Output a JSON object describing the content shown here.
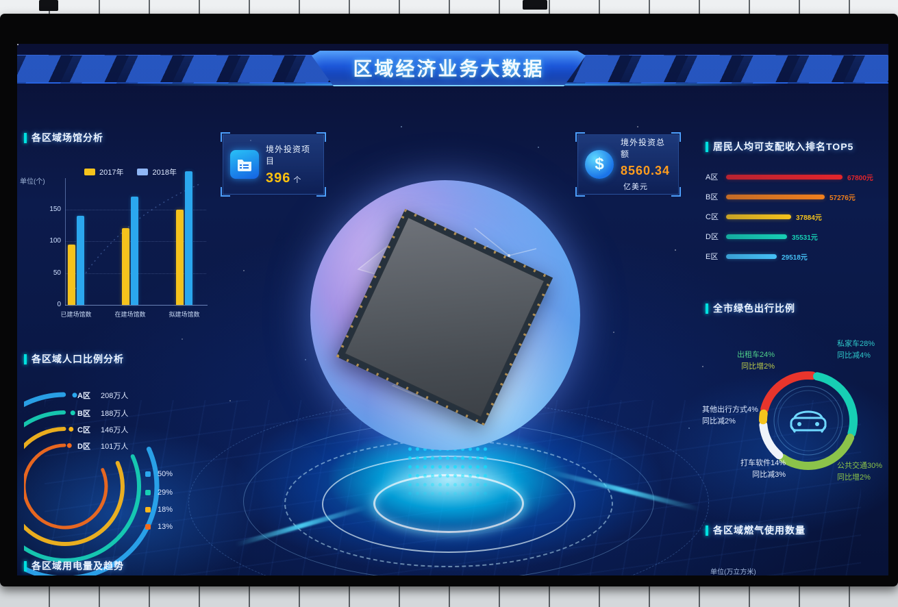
{
  "header": {
    "title": "区域经济业务大数据"
  },
  "stat_cards": [
    {
      "icon": "folder-icon",
      "label": "境外投资项目",
      "value": "396",
      "unit": "个",
      "value_color": "#ffc20e"
    },
    {
      "icon": "dollar-icon",
      "label": "境外投资总额",
      "value": "8560.34",
      "unit": "亿美元",
      "value_color": "#ff9d1e"
    }
  ],
  "chart_data": [
    {
      "id": "venues",
      "type": "bar",
      "title": "各区域场馆分析",
      "unit_label": "单位(个)",
      "categories": [
        "已建场馆数",
        "在建场馆数",
        "拟建场馆数"
      ],
      "series": [
        {
          "name": "2017年",
          "color": "#f6c31c",
          "values": [
            95,
            120,
            150
          ]
        },
        {
          "name": "2018年",
          "color": "#2ba7ee",
          "values": [
            140,
            170,
            210
          ]
        }
      ],
      "yticks": [
        0,
        50,
        100,
        150
      ],
      "ylim": [
        0,
        235
      ],
      "grid": "dotted"
    },
    {
      "id": "population",
      "type": "arc-rings",
      "title": "各区域人口比例分析",
      "items": [
        {
          "label": "A区",
          "value": "208万人",
          "pct": "50%",
          "color": "#2ba7ee"
        },
        {
          "label": "B区",
          "value": "188万人",
          "pct": "29%",
          "color": "#17cfb4"
        },
        {
          "label": "C区",
          "value": "146万人",
          "pct": "18%",
          "color": "#f6b51c"
        },
        {
          "label": "D区",
          "value": "101万人",
          "pct": "13%",
          "color": "#f26a1d"
        }
      ]
    },
    {
      "id": "income",
      "type": "hbar",
      "title": "居民人均可支配收入排名TOP5",
      "categories": [
        "A区",
        "B区",
        "C区",
        "D区",
        "E区"
      ],
      "values": [
        67800,
        57276,
        37884,
        35531,
        29518
      ],
      "value_labels": [
        "67800元",
        "57276元",
        "37884元",
        "35531元",
        "29518元"
      ],
      "colors": [
        "#e3252b",
        "#f07f1d",
        "#f6c31c",
        "#17cfb4",
        "#45c0f5"
      ],
      "xlim": [
        0,
        70000
      ]
    },
    {
      "id": "green_travel",
      "type": "pie",
      "title": "全市绿色出行比例",
      "segments": [
        {
          "label": "出租车24%",
          "sub": "同比增2%",
          "pct": 24,
          "color": "#e8352c",
          "label_color": "#4fd08a",
          "sub_color": "#b9c94a"
        },
        {
          "label": "私家车28%",
          "sub": "同比减4%",
          "pct": 28,
          "color": "#17cfb4",
          "label_color": "#2ec7c9",
          "sub_color": "#2ec7c9"
        },
        {
          "label": "公共交通30%",
          "sub": "同比增2%",
          "pct": 30,
          "color": "#8bc34a",
          "label_color": "#8bc34a",
          "sub_color": "#8bc34a"
        },
        {
          "label": "打车软件14%",
          "sub": "同比减3%",
          "pct": 14,
          "color": "#eef3fa",
          "label_color": "#e6eefc",
          "sub_color": "#e6eefc"
        },
        {
          "label": "其他出行方式4%",
          "sub": "同比减2%",
          "pct": 4,
          "color": "#f6c31c",
          "label_color": "#dce9ff",
          "sub_color": "#dce9ff"
        }
      ],
      "center_icon": "car-icon"
    },
    {
      "id": "gas",
      "type": "bar",
      "title": "各区域燃气使用数量",
      "unit_label": "单位(万立方米)"
    },
    {
      "id": "electricity",
      "type": "line",
      "title": "各区域用电量及趋势"
    }
  ]
}
